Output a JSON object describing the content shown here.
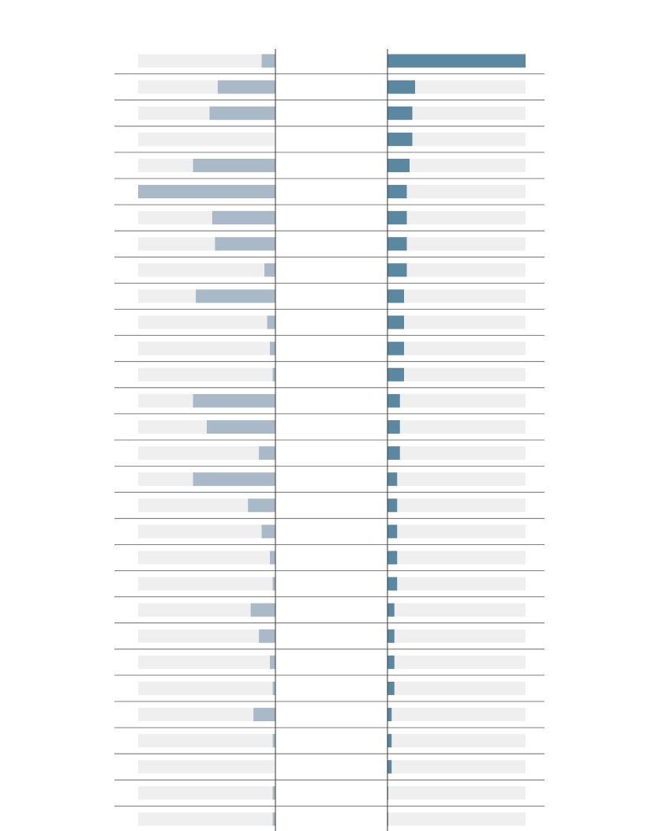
{
  "chart_data": {
    "type": "bar",
    "categories": [
      null,
      null,
      null,
      null,
      null,
      null,
      null,
      null,
      null,
      null,
      null,
      null,
      null,
      null,
      null,
      null,
      null,
      null,
      null,
      null,
      null,
      null,
      null,
      null,
      null,
      null,
      null,
      null,
      null,
      null
    ],
    "track_color": "#efefef",
    "series": [
      {
        "color": "#a9b9c8",
        "xlim": [
          0,
          100
        ],
        "values": [
          10,
          42,
          48,
          0,
          60,
          100,
          46,
          44,
          8,
          58,
          6,
          4,
          2,
          60,
          50,
          12,
          60,
          20,
          10,
          4,
          2,
          18,
          12,
          4,
          2,
          16,
          2,
          0,
          2,
          2
        ]
      },
      {
        "color": "#5b87a0",
        "xlim": [
          0,
          100
        ],
        "values": [
          100,
          20,
          18,
          18,
          16,
          14,
          14,
          14,
          14,
          12,
          12,
          12,
          12,
          9,
          9,
          9,
          7,
          7,
          7,
          7,
          7,
          5,
          5,
          5,
          5,
          3,
          3,
          3,
          0.5,
          0.5
        ]
      }
    ]
  }
}
